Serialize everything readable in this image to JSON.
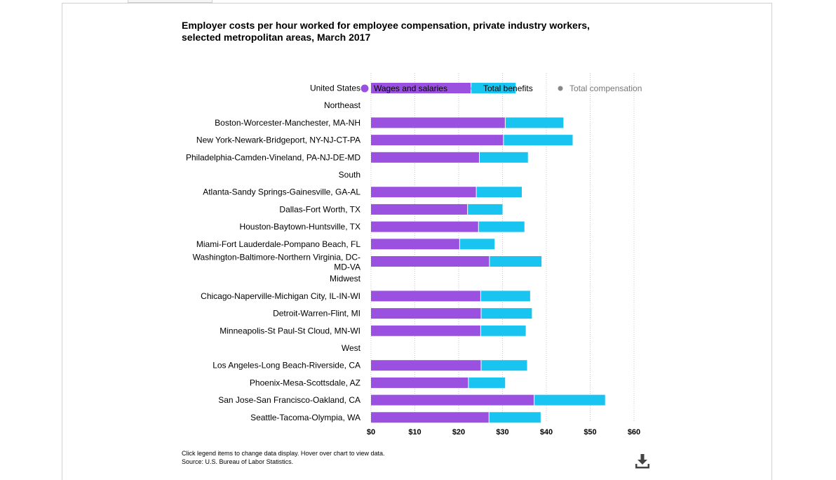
{
  "title": "Employer costs per hour worked for employee compensation, private industry workers, selected metropolitan areas, March 2017",
  "legend": [
    {
      "name": "Wages and salaries",
      "color": "#9b51e0",
      "active": true
    },
    {
      "name": "Total benefits",
      "color": "#19c4f0",
      "active": true
    },
    {
      "name": "Total compensation",
      "color": "#888888",
      "active": false
    }
  ],
  "footer": {
    "note": "Click legend items to change data display. Hover over chart to view data.",
    "source": "Source: U.S. Bureau of Labor Statistics."
  },
  "download_icon": "download-icon",
  "chart_data": {
    "type": "bar",
    "orientation": "horizontal",
    "stacked": true,
    "title": "Employer costs per hour worked for employee compensation, private industry workers, selected metropolitan areas, March 2017",
    "xlim": [
      0,
      60
    ],
    "x_ticks": [
      "$0",
      "$10",
      "$20",
      "$30",
      "$40",
      "$50",
      "$60"
    ],
    "grid": true,
    "categories": [
      {
        "label": "United States",
        "header": false,
        "highlight": true
      },
      {
        "label": "Northeast",
        "header": true
      },
      {
        "label": "Boston-Worcester-Manchester, MA-NH",
        "header": false
      },
      {
        "label": "New York-Newark-Bridgeport, NY-NJ-CT-PA",
        "header": false
      },
      {
        "label": "Philadelphia-Camden-Vineland, PA-NJ-DE-MD",
        "header": false
      },
      {
        "label": "South",
        "header": true
      },
      {
        "label": "Atlanta-Sandy Springs-Gainesville, GA-AL",
        "header": false
      },
      {
        "label": "Dallas-Fort Worth, TX",
        "header": false
      },
      {
        "label": "Houston-Baytown-Huntsville, TX",
        "header": false
      },
      {
        "label": "Miami-Fort Lauderdale-Pompano Beach, FL",
        "header": false
      },
      {
        "label": "Washington-Baltimore-Northern Virginia, DC-MD-VA",
        "header": false
      },
      {
        "label": "Midwest",
        "header": true
      },
      {
        "label": "Chicago-Naperville-Michigan City, IL-IN-WI",
        "header": false
      },
      {
        "label": "Detroit-Warren-Flint, MI",
        "header": false
      },
      {
        "label": "Minneapolis-St Paul-St Cloud, MN-WI",
        "header": false
      },
      {
        "label": "West",
        "header": true
      },
      {
        "label": "Los Angeles-Long Beach-Riverside, CA",
        "header": false
      },
      {
        "label": "Phoenix-Mesa-Scottsdale, AZ",
        "header": false
      },
      {
        "label": "San Jose-San Francisco-Oakland, CA",
        "header": false
      },
      {
        "label": "Seattle-Tacoma-Olympia, WA",
        "header": false
      }
    ],
    "series": [
      {
        "name": "Wages and salaries",
        "color": "#9b51e0",
        "values": [
          22.9,
          null,
          30.7,
          30.3,
          24.8,
          null,
          24.1,
          22.1,
          24.6,
          20.3,
          27.1,
          null,
          25.1,
          25.2,
          25.1,
          null,
          25.2,
          22.3,
          37.3,
          27.0
        ]
      },
      {
        "name": "Total benefits",
        "color": "#19c4f0",
        "values": [
          10.1,
          null,
          13.2,
          15.7,
          11.0,
          null,
          10.3,
          7.9,
          10.4,
          7.9,
          11.8,
          null,
          11.2,
          11.5,
          10.2,
          null,
          10.4,
          8.3,
          16.1,
          11.7
        ]
      }
    ]
  }
}
